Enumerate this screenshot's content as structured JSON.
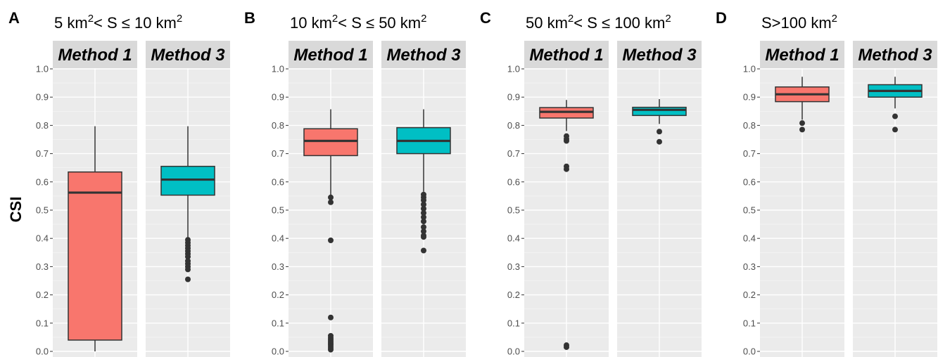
{
  "chart_data": {
    "type": "box",
    "ylabel": "CSI",
    "ylim": [
      0.0,
      1.0
    ],
    "yticks": [
      "0.0",
      "0.1",
      "0.2",
      "0.3",
      "0.4",
      "0.5",
      "0.6",
      "0.7",
      "0.8",
      "0.9",
      "1.0"
    ],
    "grid": true,
    "series_colors": {
      "Method 1": "#f8766d",
      "Method 3": "#00bfc4"
    },
    "panels": [
      {
        "letter": "A",
        "title": {
          "pre": "5 km",
          "sup1": "2",
          "mid": "< S ≤ 10 km",
          "sup2": "2"
        },
        "facets": [
          {
            "label": "Method 1",
            "whisker_low": 0.0,
            "q1": 0.04,
            "median": 0.562,
            "q3": 0.635,
            "whisker_high": 0.797,
            "outliers": []
          },
          {
            "label": "Method 3",
            "whisker_low": 0.395,
            "q1": 0.553,
            "median": 0.608,
            "q3": 0.655,
            "whisker_high": 0.797,
            "outliers": [
              0.395,
              0.385,
              0.375,
              0.365,
              0.355,
              0.345,
              0.335,
              0.32,
              0.31,
              0.3,
              0.29,
              0.255
            ]
          }
        ]
      },
      {
        "letter": "B",
        "title": {
          "pre": "10 km",
          "sup1": "2",
          "mid": "< S ≤ 50 km",
          "sup2": "2"
        },
        "facets": [
          {
            "label": "Method 1",
            "whisker_low": 0.545,
            "q1": 0.693,
            "median": 0.745,
            "q3": 0.788,
            "whisker_high": 0.857,
            "outliers": [
              0.545,
              0.528,
              0.393,
              0.12,
              0.055,
              0.048,
              0.042,
              0.036,
              0.03,
              0.024,
              0.018,
              0.012,
              0.006
            ]
          },
          {
            "label": "Method 3",
            "whisker_low": 0.565,
            "q1": 0.7,
            "median": 0.745,
            "q3": 0.792,
            "whisker_high": 0.857,
            "outliers": [
              0.555,
              0.545,
              0.535,
              0.52,
              0.505,
              0.49,
              0.475,
              0.46,
              0.44,
              0.425,
              0.41,
              0.405,
              0.357
            ]
          }
        ]
      },
      {
        "letter": "C",
        "title": {
          "pre": "50 km",
          "sup1": "2",
          "mid": "< S ≤ 100 km",
          "sup2": "2"
        },
        "facets": [
          {
            "label": "Method 1",
            "whisker_low": 0.78,
            "q1": 0.826,
            "median": 0.848,
            "q3": 0.863,
            "whisker_high": 0.89,
            "outliers": [
              0.762,
              0.752,
              0.745,
              0.655,
              0.645,
              0.022,
              0.015
            ]
          },
          {
            "label": "Method 3",
            "whisker_low": 0.805,
            "q1": 0.835,
            "median": 0.855,
            "q3": 0.864,
            "whisker_high": 0.893,
            "outliers": [
              0.778,
              0.742
            ]
          }
        ]
      },
      {
        "letter": "D",
        "title": {
          "pre": "S>100 km",
          "sup1": "2",
          "mid": "",
          "sup2": ""
        },
        "facets": [
          {
            "label": "Method 1",
            "whisker_low": 0.82,
            "q1": 0.884,
            "median": 0.91,
            "q3": 0.936,
            "whisker_high": 0.972,
            "outliers": [
              0.808,
              0.785
            ]
          },
          {
            "label": "Method 3",
            "whisker_low": 0.86,
            "q1": 0.9,
            "median": 0.922,
            "q3": 0.944,
            "whisker_high": 0.972,
            "outliers": [
              0.832,
              0.785
            ]
          }
        ]
      }
    ]
  }
}
